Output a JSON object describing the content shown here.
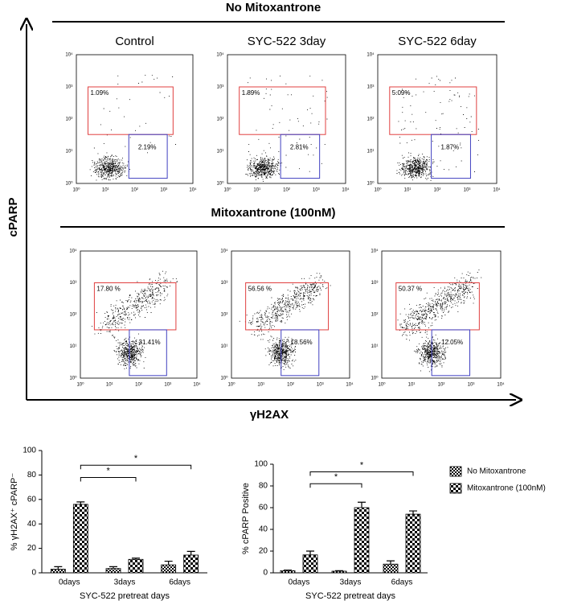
{
  "flow": {
    "y_label": "cPARP",
    "x_label": "γH2AX",
    "columns": [
      "Control",
      "SYC-522 3day",
      "SYC-522 6day"
    ],
    "axis_ticks": [
      "10⁰",
      "10¹",
      "10²",
      "10³",
      "10⁴"
    ],
    "rows": [
      {
        "title": "No Mitoxantrone",
        "gates": [
          [
            "1.09%",
            "2.19%"
          ],
          [
            "1.89%",
            "2.81%"
          ],
          [
            "5.09%",
            "1.87%"
          ]
        ]
      },
      {
        "title": "Mitoxantrone (100nM)",
        "gates": [
          [
            "17.80 %",
            "31.41%"
          ],
          [
            "56.56 %",
            "18.56%"
          ],
          [
            "50.37 %",
            "12.05%"
          ]
        ]
      }
    ]
  },
  "chart_data": [
    {
      "type": "bar",
      "y_label": "% γH2AX⁺ cPARP⁻",
      "x_label": "SYC-522 pretreat days",
      "categories": [
        "0days",
        "3days",
        "6days"
      ],
      "ylim": [
        0,
        100
      ],
      "yticks": [
        0,
        20,
        40,
        60,
        80,
        100
      ],
      "series": [
        {
          "color": "#000000",
          "values": [
            3,
            3.5,
            6.5
          ],
          "errors": [
            2,
            1.5,
            3
          ]
        },
        {
          "color": "#000000",
          "values": [
            56,
            11,
            14.5
          ],
          "errors": [
            2,
            1,
            3
          ]
        }
      ],
      "annotations": [
        {
          "label": "*",
          "from": 0,
          "to": 1,
          "y": 78
        },
        {
          "label": "*",
          "from": 0,
          "to": 2,
          "y": 88
        }
      ]
    },
    {
      "type": "bar",
      "y_label": "% cPARP Positive",
      "x_label": "SYC-522 pretreat days",
      "categories": [
        "0days",
        "3days",
        "6days"
      ],
      "ylim": [
        0,
        100
      ],
      "yticks": [
        0,
        20,
        40,
        60,
        80,
        100
      ],
      "series": [
        {
          "name": "No Mitoxantrone",
          "color": "#000000",
          "values": [
            2,
            1.5,
            8
          ],
          "errors": [
            0.5,
            0.5,
            3
          ]
        },
        {
          "name": "Mitoxantrone (100nM)",
          "color": "#000000",
          "values": [
            16.5,
            60,
            54
          ],
          "errors": [
            3.5,
            5,
            3
          ]
        }
      ],
      "annotations": [
        {
          "label": "*",
          "from": 0,
          "to": 1,
          "y": 82
        },
        {
          "label": "*",
          "from": 0,
          "to": 2,
          "y": 93
        }
      ]
    }
  ]
}
